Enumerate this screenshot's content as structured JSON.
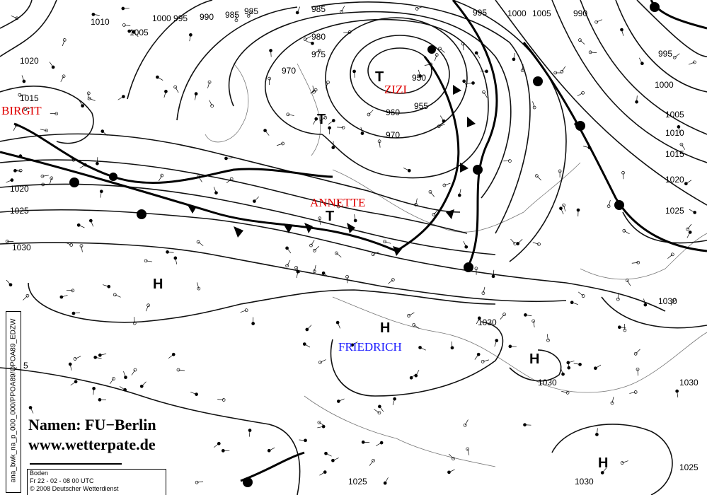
{
  "map": {
    "type": "surface weather analysis",
    "low_names": [
      "ZIZI",
      "BIRGIT",
      "ANNETTE"
    ],
    "high_names": [
      "FRIEDRICH"
    ],
    "colors": {
      "low_name": "#e00000",
      "high_name": "#1a1aff",
      "isobar": "#111111"
    },
    "high_symbol": "H",
    "low_symbol": "T",
    "isobar_labels_top": [
      "1000",
      "995",
      "990",
      "985",
      "985",
      "985",
      "995",
      "1000",
      "1005",
      "990"
    ],
    "isobar_labels_left": [
      "1010",
      "1005",
      "1020",
      "1015",
      "1020",
      "1025",
      "1030",
      "5"
    ],
    "isobar_labels_center": [
      "980",
      "975",
      "970",
      "960",
      "955",
      "950",
      "970"
    ],
    "isobar_labels_right": [
      "995",
      "1000",
      "1005",
      "1010",
      "1015",
      "1020",
      "1025",
      "1030",
      "1030",
      "1030",
      "1030",
      "1025",
      "1030",
      "1025"
    ]
  },
  "credit": {
    "names": "Namen: FU−Berlin",
    "url": "www.wetterpate.de"
  },
  "legend": {
    "level": "Boden",
    "datetime": "Fr 22 - 02 - 08  00  UTC",
    "copyright": "© 2008  Deutscher Wetterdienst"
  },
  "side_code": "ana_bwk_na_p_000_000/PPOA89/QPOA89_EDZW"
}
